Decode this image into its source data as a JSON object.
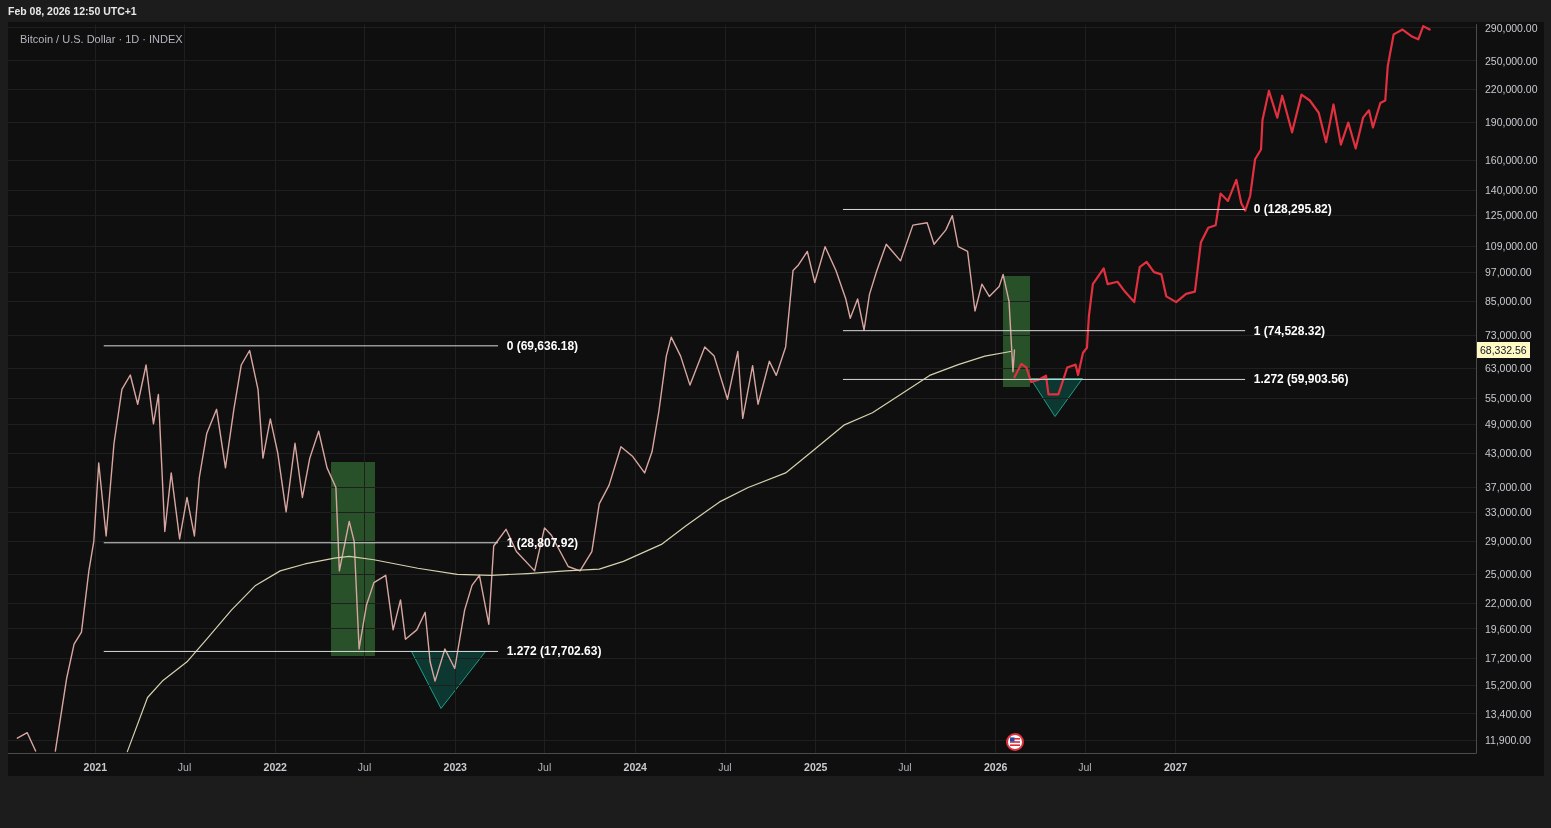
{
  "chart_data": {
    "type": "line",
    "title": "Bitcoin / U.S. Dollar · 1D · INDEX",
    "subtitle": "Feb 08, 2026 12:50 UTC+1",
    "log": "y",
    "grid": true,
    "marker": "none",
    "xlim": [
      "2020-07-08",
      "2028-09-01"
    ],
    "xticks": [
      {
        "value": "2021-01-01",
        "label": "2021"
      },
      {
        "value": "2021-07-01",
        "label": "Jul"
      },
      {
        "value": "2022-01-01",
        "label": "2022"
      },
      {
        "value": "2022-07-01",
        "label": "Jul"
      },
      {
        "value": "2023-01-01",
        "label": "2023"
      },
      {
        "value": "2023-07-01",
        "label": "Jul"
      },
      {
        "value": "2024-01-01",
        "label": "2024"
      },
      {
        "value": "2024-07-01",
        "label": "Jul"
      },
      {
        "value": "2025-01-01",
        "label": "2025"
      },
      {
        "value": "2025-07-01",
        "label": "Jul"
      },
      {
        "value": "2026-01-01",
        "label": "2026"
      },
      {
        "value": "2026-07-01",
        "label": "Jul"
      },
      {
        "value": "2027-01-01",
        "label": "2027"
      }
    ],
    "ylim": [
      11230,
      293900
    ],
    "yticks": [
      {
        "value": 11900,
        "label": "11,900.00"
      },
      {
        "value": 13400,
        "label": "13,400.00"
      },
      {
        "value": 15200,
        "label": "15,200.00"
      },
      {
        "value": 17200,
        "label": "17,200.00"
      },
      {
        "value": 19600,
        "label": "19,600.00"
      },
      {
        "value": 22000,
        "label": "22,000.00"
      },
      {
        "value": 25000,
        "label": "25,000.00"
      },
      {
        "value": 29000,
        "label": "29,000.00"
      },
      {
        "value": 33000,
        "label": "33,000.00"
      },
      {
        "value": 37000,
        "label": "37,000.00"
      },
      {
        "value": 43000,
        "label": "43,000.00"
      },
      {
        "value": 49000,
        "label": "49,000.00"
      },
      {
        "value": 55000,
        "label": "55,000.00"
      },
      {
        "value": 63000,
        "label": "63,000.00"
      },
      {
        "value": 73000,
        "label": "73,000.00"
      },
      {
        "value": 85000,
        "label": "85,000.00"
      },
      {
        "value": 97000,
        "label": "97,000.00"
      },
      {
        "value": 109000,
        "label": "109,000.00"
      },
      {
        "value": 125000,
        "label": "125,000.00"
      },
      {
        "value": 140000,
        "label": "140,000.00"
      },
      {
        "value": 160000,
        "label": "160,000.00"
      },
      {
        "value": 190000,
        "label": "190,000.00"
      },
      {
        "value": 220000,
        "label": "220,000.00"
      },
      {
        "value": 250000,
        "label": "250,000.00"
      },
      {
        "value": 290000,
        "label": "290,000.00"
      }
    ],
    "annotations": [
      {
        "text": "0 (69,636.18)",
        "x": "2023-03-28",
        "y": 69636.18
      },
      {
        "text": "1 (28,807.92)",
        "x": "2023-03-28",
        "y": 28807.92
      },
      {
        "text": "1.272 (17,702.63)",
        "x": "2023-03-28",
        "y": 17702.63
      },
      {
        "text": "0 (128,295.82)",
        "x": "2027-05-21",
        "y": 128295.82
      },
      {
        "text": "1 (74,528.32)",
        "x": "2027-05-21",
        "y": 74528.32
      },
      {
        "text": "1.272 (59,903.56)",
        "x": "2027-05-21",
        "y": 59903.56
      },
      "68,332.56"
    ],
    "series": [
      {
        "color": "#d8a6a0",
        "x": [
          "2020-07-27",
          "2020-08-16",
          "2020-09-02",
          "2020-09-20",
          "2020-10-12",
          "2020-11-04",
          "2020-11-19",
          "2020-12-04",
          "2020-12-19",
          "2020-12-29",
          "2021-01-08",
          "2021-01-23",
          "2021-02-08",
          "2021-02-24",
          "2021-03-13",
          "2021-03-28",
          "2021-04-14",
          "2021-04-29",
          "2021-05-09",
          "2021-05-22",
          "2021-06-04",
          "2021-06-21",
          "2021-07-06",
          "2021-07-21",
          "2021-07-31",
          "2021-08-15",
          "2021-09-04",
          "2021-09-22",
          "2021-10-09",
          "2021-10-24",
          "2021-11-10",
          "2021-11-27",
          "2021-12-07",
          "2021-12-22",
          "2022-01-06",
          "2022-01-23",
          "2022-02-10",
          "2022-02-25",
          "2022-03-12",
          "2022-03-30",
          "2022-04-16",
          "2022-05-04",
          "2022-05-11",
          "2022-05-31",
          "2022-06-10",
          "2022-06-20",
          "2022-07-05",
          "2022-07-20",
          "2022-08-13",
          "2022-08-28",
          "2022-09-12",
          "2022-09-22",
          "2022-10-15",
          "2022-11-01",
          "2022-11-11",
          "2022-11-21",
          "2022-12-11",
          "2022-12-31",
          "2023-01-20",
          "2023-02-04",
          "2023-02-19",
          "2023-03-10",
          "2023-03-20",
          "2023-04-14",
          "2023-05-05",
          "2023-06-11",
          "2023-07-01",
          "2023-07-15",
          "2023-08-18",
          "2023-09-11",
          "2023-10-05",
          "2023-10-20",
          "2023-11-09",
          "2023-12-03",
          "2023-12-27",
          "2024-01-20",
          "2024-02-04",
          "2024-02-18",
          "2024-03-04",
          "2024-03-14",
          "2024-04-02",
          "2024-04-21",
          "2024-05-21",
          "2024-06-09",
          "2024-07-06",
          "2024-07-27",
          "2024-08-06",
          "2024-08-26",
          "2024-09-06",
          "2024-09-29",
          "2024-10-13",
          "2024-11-01",
          "2024-11-16",
          "2024-11-26",
          "2024-12-15",
          "2024-12-30",
          "2025-01-20",
          "2025-02-11",
          "2025-03-03",
          "2025-03-12",
          "2025-03-27",
          "2025-04-09",
          "2025-04-20",
          "2025-05-05",
          "2025-05-24",
          "2025-06-22",
          "2025-07-17",
          "2025-08-15",
          "2025-08-29",
          "2025-09-22",
          "2025-10-05",
          "2025-10-17",
          "2025-11-05",
          "2025-11-20",
          "2025-12-04",
          "2025-12-19",
          "2026-01-08",
          "2026-01-16",
          "2026-01-28",
          "2026-02-05",
          "2026-02-08"
        ],
        "values": [
          12000,
          12300,
          11330,
          null,
          11330,
          15700,
          18300,
          19300,
          25400,
          29000,
          41200,
          29700,
          45000,
          57300,
          61100,
          53600,
          63900,
          49100,
          56000,
          30300,
          39400,
          29300,
          35300,
          29700,
          38600,
          47000,
          52400,
          40300,
          52400,
          63900,
          68200,
          57300,
          42100,
          50200,
          43100,
          33100,
          45000,
          35300,
          42100,
          47500,
          40300,
          36900,
          25400,
          31700,
          29000,
          17900,
          21800,
          24100,
          24900,
          19500,
          22300,
          18700,
          19500,
          21100,
          16900,
          15500,
          17900,
          16400,
          21300,
          23800,
          24900,
          20000,
          28400,
          30600,
          27700,
          25400,
          30800,
          29800,
          25900,
          25400,
          27700,
          34300,
          37300,
          44300,
          42400,
          39400,
          43300,
          52000,
          66500,
          72400,
          66500,
          58400,
          69300,
          66500,
          54800,
          67900,
          50300,
          63700,
          53600,
          65000,
          61000,
          69300,
          97600,
          99800,
          106300,
          92500,
          108600,
          97600,
          85900,
          78800,
          85900,
          74700,
          87700,
          97600,
          109800,
          101900,
          119600,
          120900,
          109800,
          117100,
          124800,
          108600,
          106300,
          81400,
          91800,
          86900,
          90800,
          95900,
          85000,
          62000,
          68332.56
        ]
      },
      {
        "color": "#d6d1ae",
        "x": [
          "2021-03-07",
          "2021-04-17",
          "2021-05-17",
          "2021-07-06",
          "2021-08-15",
          "2021-10-04",
          "2021-11-22",
          "2022-01-11",
          "2022-03-02",
          "2022-05-01",
          "2022-05-31",
          "2022-07-20",
          "2022-10-17",
          "2023-01-05",
          "2023-03-15",
          "2023-05-28",
          "2023-08-13",
          "2023-10-20",
          "2023-12-08",
          "2024-02-23",
          "2024-04-13",
          "2024-06-20",
          "2024-08-17",
          "2024-11-01",
          "2024-12-30",
          "2025-02-27",
          "2025-04-26",
          "2025-06-22",
          "2025-08-20",
          "2025-10-17",
          "2025-12-10",
          "2026-01-31"
        ],
        "values": [
          11300,
          14400,
          15500,
          16900,
          18700,
          21300,
          23800,
          25400,
          26200,
          26900,
          27100,
          26700,
          25700,
          25000,
          24900,
          25100,
          25400,
          25600,
          26500,
          28600,
          31100,
          34600,
          36900,
          39400,
          43800,
          48800,
          51600,
          56000,
          61000,
          64000,
          66500,
          67900
        ]
      },
      {
        "color": "#e2303f",
        "x": [
          "2026-02-08",
          "2026-02-22",
          "2026-03-04",
          "2026-03-14",
          "2026-03-29",
          "2026-04-13",
          "2026-04-18",
          "2026-05-08",
          "2026-05-18",
          "2026-05-26",
          "2026-06-12",
          "2026-06-17",
          "2026-06-27",
          "2026-07-05",
          "2026-07-09",
          "2026-07-17",
          "2026-08-08",
          "2026-08-16",
          "2026-09-05",
          "2026-09-20",
          "2026-10-09",
          "2026-10-20",
          "2026-11-03",
          "2026-11-18",
          "2026-12-03",
          "2026-12-13",
          "2027-01-02",
          "2027-01-22",
          "2027-02-09",
          "2027-02-21",
          "2027-03-08",
          "2027-03-23",
          "2027-04-02",
          "2027-04-17",
          "2027-05-04",
          "2027-05-14",
          "2027-05-22",
          "2027-06-01",
          "2027-06-11",
          "2027-06-23",
          "2027-06-26",
          "2027-07-09",
          "2027-07-26",
          "2027-08-05",
          "2027-08-25",
          "2027-09-13",
          "2027-09-30",
          "2027-10-18",
          "2027-11-02",
          "2027-11-17",
          "2027-12-02",
          "2027-12-17",
          "2028-01-01",
          "2028-01-16",
          "2028-01-28",
          "2028-02-05",
          "2028-02-20",
          "2028-03-01",
          "2028-03-06",
          "2028-03-18",
          "2028-04-05",
          "2028-04-25",
          "2028-05-07",
          "2028-05-17",
          "2028-05-30"
        ],
        "values": [
          60500,
          64200,
          63200,
          59200,
          59800,
          60900,
          56000,
          56000,
          59800,
          63200,
          64000,
          61100,
          67500,
          69000,
          79600,
          91800,
          98500,
          91800,
          92800,
          88800,
          84700,
          99100,
          101400,
          96900,
          95900,
          86900,
          84700,
          87900,
          88800,
          110600,
          118200,
          119500,
          137800,
          133300,
          146500,
          131900,
          127600,
          136300,
          160700,
          167900,
          191500,
          218300,
          193600,
          213600,
          181300,
          214600,
          209100,
          197900,
          173500,
          205400,
          171600,
          189400,
          168600,
          193600,
          200100,
          185300,
          206800,
          209100,
          243700,
          281200,
          287400,
          278100,
          275000,
          291800,
          287400
        ]
      },
      {
        "color": "#d9d9d9",
        "x": [
          "2021-01-19",
          "2023-03-28"
        ],
        "values": [
          69636.18,
          69636.18
        ]
      },
      {
        "color": "#d9d9d9",
        "x": [
          "2021-01-19",
          "2023-03-28"
        ],
        "values": [
          28807.92,
          28807.92
        ]
      },
      {
        "color": "#d9d9d9",
        "x": [
          "2021-01-19",
          "2023-03-28"
        ],
        "values": [
          17702.63,
          17702.63
        ]
      },
      {
        "color": "#d9d9d9",
        "x": [
          "2025-02-26",
          "2027-05-21"
        ],
        "values": [
          128295.82,
          128295.82
        ]
      },
      {
        "color": "#d9d9d9",
        "x": [
          "2025-02-26",
          "2027-05-21"
        ],
        "values": [
          74528.32,
          74528.32
        ]
      },
      {
        "color": "#d9d9d9",
        "x": [
          "2025-02-26",
          "2027-05-21"
        ],
        "values": [
          59903.56,
          59903.56
        ]
      }
    ]
  }
}
